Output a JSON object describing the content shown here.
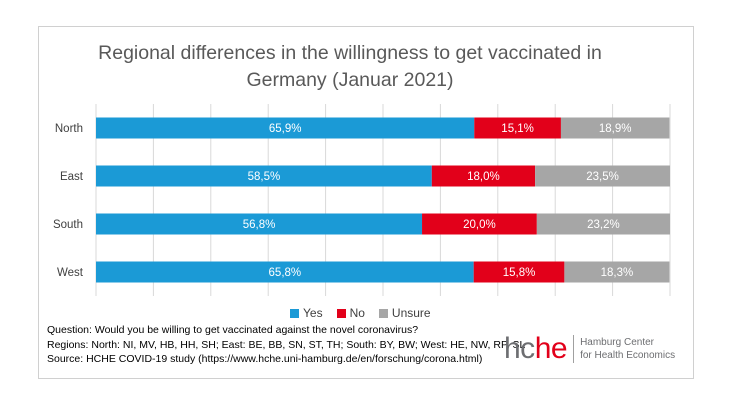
{
  "chart_data": {
    "type": "bar",
    "orientation": "horizontal",
    "stacked": true,
    "title": "Regional differences in the willingness to get vaccinated in Germany (Januar 2021)",
    "title_lines": [
      "Regional differences in the willingness to get vaccinated in",
      "Germany (Januar 2021)"
    ],
    "categories": [
      "North",
      "East",
      "South",
      "West"
    ],
    "series": [
      {
        "name": "Yes",
        "color": "#1b9ad6",
        "values": [
          65.9,
          58.5,
          56.8,
          65.8
        ],
        "labels": [
          "65,9%",
          "58,5%",
          "56,8%",
          "65,8%"
        ]
      },
      {
        "name": "No",
        "color": "#e2001a",
        "values": [
          15.1,
          18.0,
          20.0,
          15.8
        ],
        "labels": [
          "15,1%",
          "18,0%",
          "20,0%",
          "15,8%"
        ]
      },
      {
        "name": "Unsure",
        "color": "#a6a6a6",
        "values": [
          18.9,
          23.5,
          23.2,
          18.3
        ],
        "labels": [
          "18,9%",
          "23,5%",
          "23,2%",
          "18,3%"
        ]
      }
    ],
    "xlim": [
      0,
      100
    ],
    "grid": true,
    "legend_position": "bottom"
  },
  "notes": {
    "question": "Question: Would you be willing to get vaccinated against the novel coronavirus?",
    "regions": "Regions: North: NI, MV, HB, HH, SH; East: BE, BB, SN, ST, TH; South: BY, BW; West: HE, NW, RP, SL",
    "source": "Source: HCHE COVID-19 study (https://www.hche.uni-hamburg.de/en/forschung/corona.html)"
  },
  "logo": {
    "mark_part1": "hc",
    "mark_part2": "he",
    "line1": "Hamburg Center",
    "line2": "for Health Economics"
  }
}
